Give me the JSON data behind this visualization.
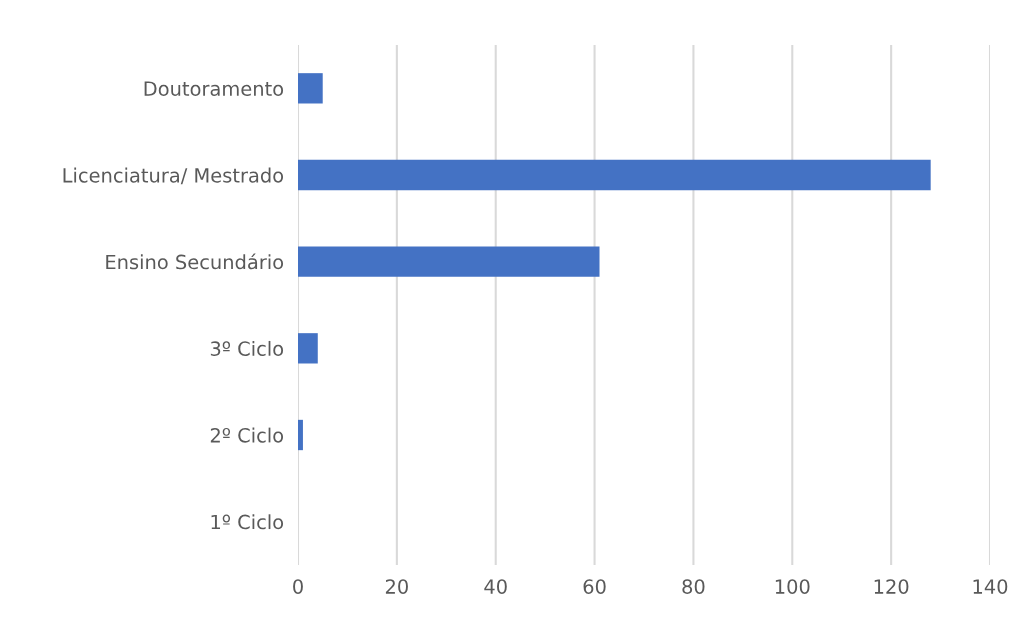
{
  "chart_data": {
    "type": "bar",
    "orientation": "horizontal",
    "categories": [
      "Doutoramento",
      "Licenciatura/ Mestrado",
      "Ensino Secundário",
      "3º Ciclo",
      "2º Ciclo",
      "1º Ciclo"
    ],
    "values": [
      5,
      128,
      61,
      4,
      1,
      0
    ],
    "color": "#4472c4",
    "xlim": [
      0,
      140
    ],
    "xticks": [
      0,
      20,
      40,
      60,
      80,
      100,
      120,
      140
    ],
    "grid": "x",
    "legend": false
  }
}
